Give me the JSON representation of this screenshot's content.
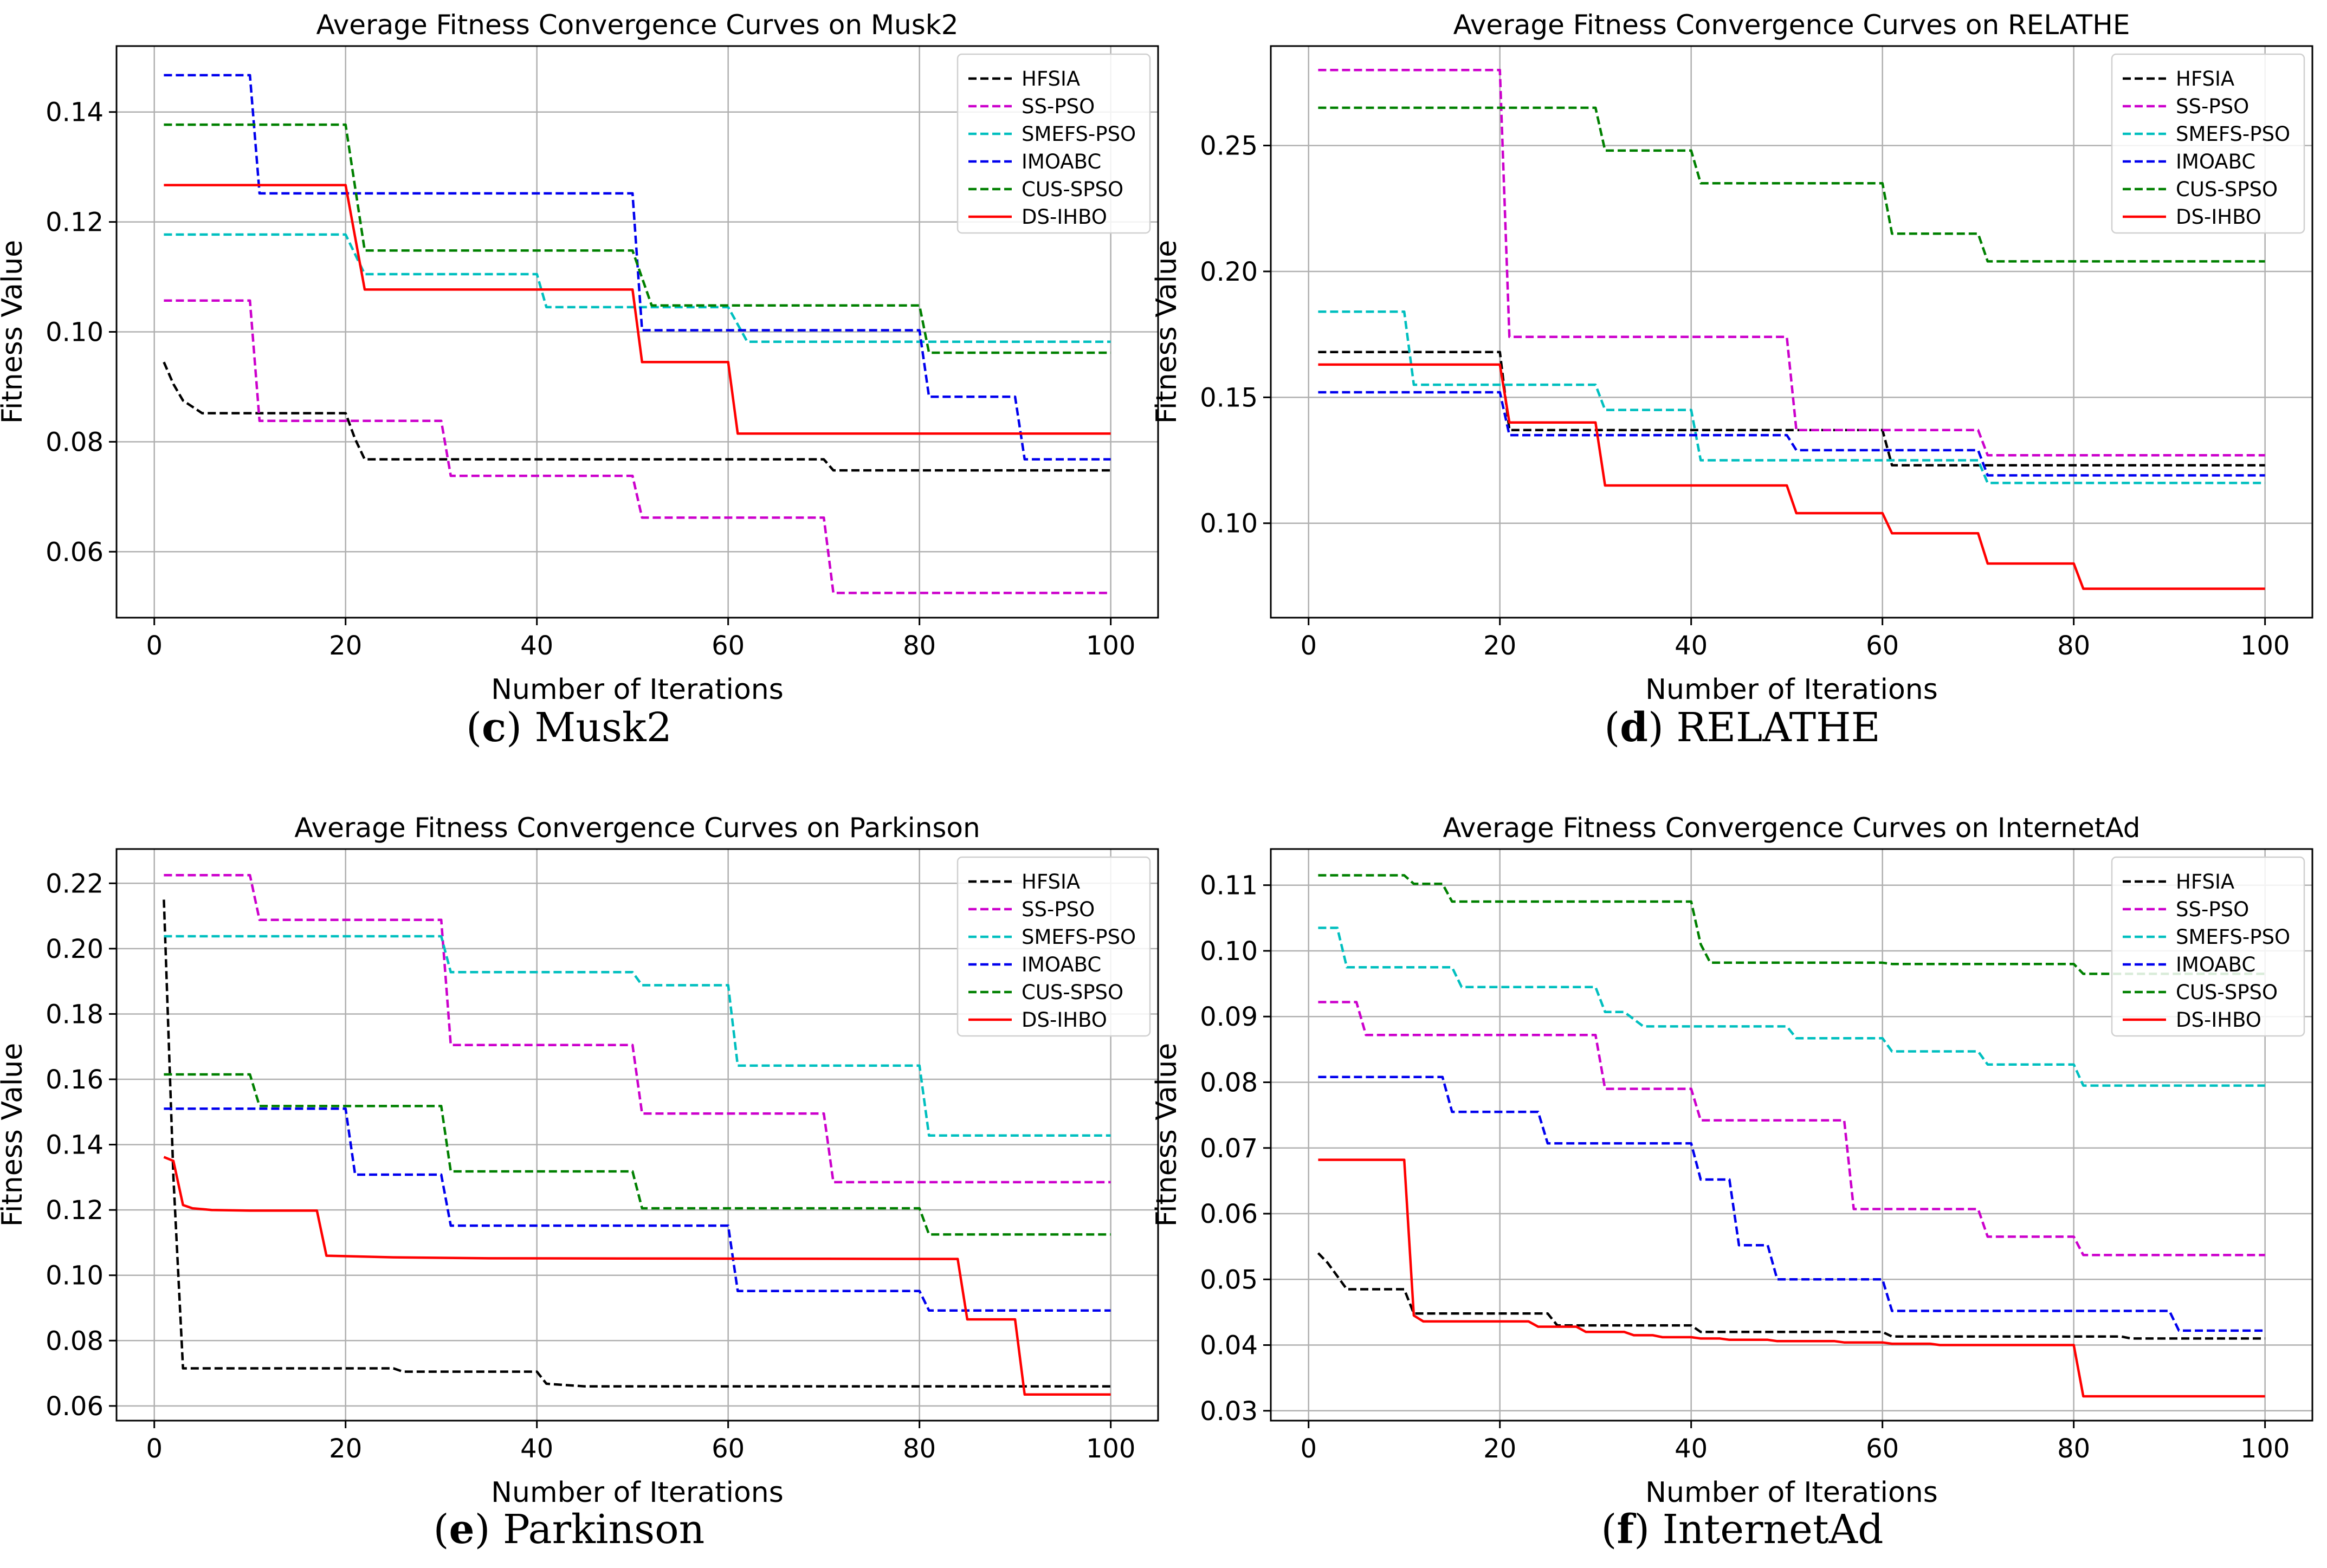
{
  "legend_labels": [
    "HFSIA",
    "SS-PSO",
    "SMEFS-PSO",
    "IMOABC",
    "CUS-SPSO",
    "DS-IHBO"
  ],
  "series_colors": {
    "HFSIA": "#000000",
    "SS-PSO": "#cc00cc",
    "SMEFS-PSO": "#00bfbf",
    "IMOABC": "#0000ee",
    "CUS-SPSO": "#008000",
    "DS-IHBO": "#ff0000"
  },
  "panels": [
    {
      "caption_letter": "c",
      "caption_text": "Musk2",
      "chart_data": {
        "type": "line",
        "title": "Average Fitness Convergence Curves on Musk2",
        "xlabel": "Number of Iterations",
        "ylabel": "Fitness Value",
        "xlim": [
          -3.95,
          104.95
        ],
        "ylim": [
          0.048,
          0.152
        ],
        "xticks": [
          0,
          20,
          40,
          60,
          80,
          100
        ],
        "xtick_labels": [
          "0",
          "20",
          "40",
          "60",
          "80",
          "100"
        ],
        "yticks": [
          0.06,
          0.08,
          0.1,
          0.12,
          0.14
        ],
        "ytick_labels": [
          "0.06",
          "0.08",
          "0.10",
          "0.12",
          "0.14"
        ],
        "series": [
          {
            "name": "HFSIA",
            "x": [
              1,
              2,
              3,
              5,
              20,
              21,
              22,
              70,
              71,
              100
            ],
            "y": [
              0.0945,
              0.0905,
              0.0875,
              0.0852,
              0.0852,
              0.0805,
              0.0768,
              0.0768,
              0.0748,
              0.0748
            ]
          },
          {
            "name": "SS-PSO",
            "x": [
              1,
              10,
              11,
              30,
              31,
              50,
              51,
              70,
              71,
              100
            ],
            "y": [
              0.1057,
              0.1057,
              0.0838,
              0.0838,
              0.0738,
              0.0738,
              0.0662,
              0.0662,
              0.0525,
              0.0525
            ]
          },
          {
            "name": "SMEFS-PSO",
            "x": [
              1,
              20,
              22,
              40,
              41,
              50,
              51,
              60,
              62,
              100
            ],
            "y": [
              0.1177,
              0.1177,
              0.1105,
              0.1105,
              0.1045,
              0.1045,
              0.1045,
              0.1045,
              0.0982,
              0.0982
            ]
          },
          {
            "name": "IMOABC",
            "x": [
              1,
              10,
              11,
              50,
              51,
              80,
              81,
              90,
              91,
              100
            ],
            "y": [
              0.1467,
              0.1467,
              0.1252,
              0.1252,
              0.1003,
              0.1003,
              0.0882,
              0.0882,
              0.0768,
              0.0768
            ]
          },
          {
            "name": "CUS-SPSO",
            "x": [
              1,
              20,
              22,
              50,
              52,
              80,
              81,
              100
            ],
            "y": [
              0.1377,
              0.1377,
              0.1148,
              0.1148,
              0.1048,
              0.1048,
              0.0962,
              0.0962
            ]
          },
          {
            "name": "DS-IHBO",
            "x": [
              1,
              20,
              22,
              50,
              51,
              60,
              61,
              100
            ],
            "y": [
              0.1267,
              0.1267,
              0.1077,
              0.1077,
              0.0945,
              0.0945,
              0.0815,
              0.0815
            ]
          }
        ]
      }
    },
    {
      "caption_letter": "d",
      "caption_text": "RELATHE",
      "chart_data": {
        "type": "line",
        "title": "Average Fitness Convergence Curves on RELATHE",
        "xlabel": "Number of Iterations",
        "ylabel": "Fitness Value",
        "xlim": [
          -3.95,
          104.95
        ],
        "ylim": [
          0.0625,
          0.2895
        ],
        "xticks": [
          0,
          20,
          40,
          60,
          80,
          100
        ],
        "xtick_labels": [
          "0",
          "20",
          "40",
          "60",
          "80",
          "100"
        ],
        "yticks": [
          0.1,
          0.15,
          0.2,
          0.25
        ],
        "ytick_labels": [
          "0.10",
          "0.15",
          "0.20",
          "0.25"
        ],
        "series": [
          {
            "name": "HFSIA",
            "x": [
              1,
              20,
              21,
              60,
              61,
              70,
              71,
              100
            ],
            "y": [
              0.168,
              0.168,
              0.137,
              0.137,
              0.123,
              0.123,
              0.123,
              0.123
            ]
          },
          {
            "name": "SS-PSO",
            "x": [
              1,
              20,
              21,
              50,
              51,
              70,
              71,
              100
            ],
            "y": [
              0.28,
              0.28,
              0.174,
              0.174,
              0.137,
              0.137,
              0.127,
              0.127
            ]
          },
          {
            "name": "SMEFS-PSO",
            "x": [
              1,
              10,
              11,
              30,
              31,
              40,
              41,
              60,
              61,
              70,
              71,
              100
            ],
            "y": [
              0.184,
              0.184,
              0.155,
              0.155,
              0.145,
              0.145,
              0.125,
              0.125,
              0.125,
              0.125,
              0.116,
              0.116
            ]
          },
          {
            "name": "IMOABC",
            "x": [
              1,
              20,
              21,
              50,
              51,
              70,
              71,
              100
            ],
            "y": [
              0.152,
              0.152,
              0.135,
              0.135,
              0.129,
              0.129,
              0.119,
              0.119
            ]
          },
          {
            "name": "CUS-SPSO",
            "x": [
              1,
              30,
              31,
              40,
              41,
              60,
              61,
              70,
              71,
              100
            ],
            "y": [
              0.265,
              0.265,
              0.248,
              0.248,
              0.235,
              0.235,
              0.215,
              0.215,
              0.204,
              0.204
            ]
          },
          {
            "name": "DS-IHBO",
            "x": [
              1,
              20,
              21,
              30,
              31,
              50,
              51,
              60,
              61,
              70,
              71,
              80,
              81,
              100
            ],
            "y": [
              0.163,
              0.163,
              0.14,
              0.14,
              0.115,
              0.115,
              0.104,
              0.104,
              0.096,
              0.096,
              0.084,
              0.084,
              0.074,
              0.074
            ]
          }
        ]
      }
    },
    {
      "caption_letter": "e",
      "caption_text": "Parkinson",
      "chart_data": {
        "type": "line",
        "title": "Average Fitness Convergence Curves on Parkinson",
        "xlabel": "Number of Iterations",
        "ylabel": "Fitness Value",
        "xlim": [
          -3.95,
          104.95
        ],
        "ylim": [
          0.0555,
          0.2305
        ],
        "xticks": [
          0,
          20,
          40,
          60,
          80,
          100
        ],
        "xtick_labels": [
          "0",
          "20",
          "40",
          "60",
          "80",
          "100"
        ],
        "yticks": [
          0.06,
          0.08,
          0.1,
          0.12,
          0.14,
          0.16,
          0.18,
          0.2,
          0.22
        ],
        "ytick_labels": [
          "0.06",
          "0.08",
          "0.10",
          "0.12",
          "0.14",
          "0.16",
          "0.18",
          "0.20",
          "0.22"
        ],
        "series": [
          {
            "name": "HFSIA",
            "x": [
              1,
              2,
              3,
              25,
              26,
              40,
              41,
              45,
              100
            ],
            "y": [
              0.215,
              0.13,
              0.0715,
              0.0715,
              0.0705,
              0.0705,
              0.0668,
              0.066,
              0.066
            ]
          },
          {
            "name": "SS-PSO",
            "x": [
              1,
              10,
              11,
              30,
              31,
              50,
              51,
              70,
              71,
              100
            ],
            "y": [
              0.2225,
              0.2225,
              0.2088,
              0.2088,
              0.1705,
              0.1705,
              0.1495,
              0.1495,
              0.1285,
              0.1285
            ]
          },
          {
            "name": "SMEFS-PSO",
            "x": [
              1,
              30,
              31,
              50,
              51,
              60,
              61,
              80,
              81,
              100
            ],
            "y": [
              0.2038,
              0.2038,
              0.1928,
              0.1928,
              0.1888,
              0.1888,
              0.1642,
              0.1642,
              0.1428,
              0.1428
            ]
          },
          {
            "name": "IMOABC",
            "x": [
              1,
              20,
              21,
              30,
              31,
              60,
              61,
              80,
              81,
              100
            ],
            "y": [
              0.151,
              0.151,
              0.1308,
              0.1308,
              0.1152,
              0.1152,
              0.0952,
              0.0952,
              0.0892,
              0.0892
            ]
          },
          {
            "name": "CUS-SPSO",
            "x": [
              1,
              10,
              11,
              30,
              31,
              50,
              51,
              80,
              81,
              100
            ],
            "y": [
              0.1615,
              0.1615,
              0.1518,
              0.1518,
              0.1318,
              0.1318,
              0.1205,
              0.1205,
              0.1125,
              0.1125
            ]
          },
          {
            "name": "DS-IHBO",
            "x": [
              1,
              2,
              3,
              4,
              6,
              10,
              17,
              18,
              25,
              35,
              84,
              85,
              90,
              91,
              100
            ],
            "y": [
              0.1362,
              0.135,
              0.1215,
              0.1205,
              0.12,
              0.1198,
              0.1198,
              0.106,
              0.1055,
              0.1052,
              0.105,
              0.0865,
              0.0865,
              0.0635,
              0.0635
            ]
          }
        ]
      }
    },
    {
      "caption_letter": "f",
      "caption_text": "InternetAd",
      "chart_data": {
        "type": "line",
        "title": "Average Fitness Convergence Curves on InternetAd",
        "xlabel": "Number of Iterations",
        "ylabel": "Fitness Value",
        "xlim": [
          -3.95,
          104.95
        ],
        "ylim": [
          0.0285,
          0.1155
        ],
        "xticks": [
          0,
          20,
          40,
          60,
          80,
          100
        ],
        "xtick_labels": [
          "0",
          "20",
          "40",
          "60",
          "80",
          "100"
        ],
        "yticks": [
          0.03,
          0.04,
          0.05,
          0.06,
          0.07,
          0.08,
          0.09,
          0.1,
          0.11
        ],
        "ytick_labels": [
          "0.03",
          "0.04",
          "0.05",
          "0.06",
          "0.07",
          "0.08",
          "0.09",
          "0.10",
          "0.11"
        ],
        "series": [
          {
            "name": "HFSIA",
            "x": [
              1,
              2,
              4,
              10,
              11,
              25,
              26,
              40,
              41,
              60,
              61,
              85,
              86,
              100
            ],
            "y": [
              0.054,
              0.0525,
              0.0485,
              0.0485,
              0.0448,
              0.0448,
              0.043,
              0.043,
              0.042,
              0.042,
              0.0413,
              0.0413,
              0.041,
              0.041
            ]
          },
          {
            "name": "SS-PSO",
            "x": [
              1,
              5,
              6,
              30,
              31,
              40,
              41,
              56,
              57,
              70,
              71,
              80,
              81,
              100
            ],
            "y": [
              0.0922,
              0.0922,
              0.0872,
              0.0872,
              0.079,
              0.079,
              0.0742,
              0.0742,
              0.0607,
              0.0607,
              0.0565,
              0.0565,
              0.0537,
              0.0537
            ]
          },
          {
            "name": "SMEFS-PSO",
            "x": [
              1,
              3,
              4,
              15,
              16,
              30,
              31,
              33,
              35,
              50,
              51,
              60,
              61,
              70,
              71,
              80,
              81,
              100
            ],
            "y": [
              0.1035,
              0.1035,
              0.0975,
              0.0975,
              0.0945,
              0.0945,
              0.0907,
              0.0907,
              0.0885,
              0.0885,
              0.0867,
              0.0867,
              0.0847,
              0.0847,
              0.0827,
              0.0827,
              0.0795,
              0.0795
            ]
          },
          {
            "name": "IMOABC",
            "x": [
              1,
              14,
              15,
              24,
              25,
              40,
              41,
              44,
              45,
              48,
              49,
              53,
              54,
              60,
              61,
              90,
              91,
              100
            ],
            "y": [
              0.0808,
              0.0808,
              0.0755,
              0.0755,
              0.0707,
              0.0707,
              0.0652,
              0.0652,
              0.0552,
              0.0552,
              0.05,
              0.05,
              0.05,
              0.05,
              0.0452,
              0.0452,
              0.0422,
              0.0422
            ]
          },
          {
            "name": "CUS-SPSO",
            "x": [
              1,
              10,
              11,
              14,
              15,
              40,
              41,
              42,
              60,
              61,
              80,
              81,
              100
            ],
            "y": [
              0.1115,
              0.1115,
              0.1102,
              0.1102,
              0.1075,
              0.1075,
              0.101,
              0.0982,
              0.0982,
              0.098,
              0.098,
              0.0965,
              0.0965
            ]
          },
          {
            "name": "DS-IHBO",
            "x": [
              1,
              10,
              11,
              12,
              23,
              24,
              28,
              29,
              33,
              34,
              36,
              37,
              40,
              41,
              43,
              44,
              48,
              49,
              55,
              56,
              60,
              61,
              65,
              66,
              70,
              71,
              80,
              81,
              100
            ],
            "y": [
              0.0682,
              0.0682,
              0.0445,
              0.0436,
              0.0436,
              0.0428,
              0.0428,
              0.042,
              0.042,
              0.0415,
              0.0415,
              0.0412,
              0.0412,
              0.041,
              0.041,
              0.0408,
              0.0408,
              0.0406,
              0.0406,
              0.0404,
              0.0404,
              0.0402,
              0.0402,
              0.04,
              0.04,
              0.04,
              0.04,
              0.0322,
              0.0322
            ]
          }
        ]
      }
    }
  ]
}
